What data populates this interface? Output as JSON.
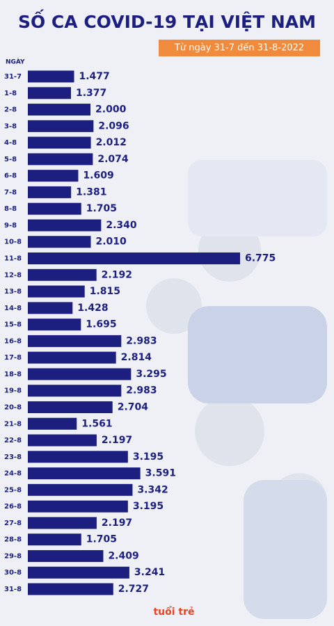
{
  "chart_data": {
    "type": "bar",
    "orientation": "horizontal",
    "title": "SỐ CA COVID-19 TẠI VIỆT NAM",
    "subtitle": "Từ ngày 31-7 đến 31-8-2022",
    "y_label": "NGÀY",
    "logo": "tuổi trẻ",
    "color": "#1c1f7f",
    "categories": [
      "31-7",
      "1-8",
      "2-8",
      "3-8",
      "4-8",
      "5-8",
      "6-8",
      "7-8",
      "8-8",
      "9-8",
      "10-8",
      "11-8",
      "12-8",
      "13-8",
      "14-8",
      "15-8",
      "16-8",
      "17-8",
      "18-8",
      "19-8",
      "20-8",
      "21-8",
      "22-8",
      "23-8",
      "24-8",
      "25-8",
      "26-8",
      "27-8",
      "28-8",
      "29-8",
      "30-8",
      "31-8"
    ],
    "values": [
      1477,
      1377,
      2000,
      2096,
      2012,
      2074,
      1609,
      1381,
      1705,
      2340,
      2010,
      6775,
      2192,
      1815,
      1428,
      1695,
      2983,
      2814,
      3295,
      2983,
      2704,
      1561,
      2197,
      3195,
      3591,
      3342,
      3195,
      2197,
      1705,
      2409,
      3241,
      2727
    ],
    "value_labels": [
      "1.477",
      "1.377",
      "2.000",
      "2.096",
      "2.012",
      "2.074",
      "1.609",
      "1.381",
      "1.705",
      "2.340",
      "2.010",
      "6.775",
      "2.192",
      "1.815",
      "1.428",
      "1.695",
      "2.983",
      "2.814",
      "3.295",
      "2.983",
      "2.704",
      "1.561",
      "2.197",
      "3.195",
      "3.591",
      "3.342",
      "3.195",
      "2.197",
      "1.705",
      "2.409",
      "3.241",
      "2.727"
    ]
  }
}
